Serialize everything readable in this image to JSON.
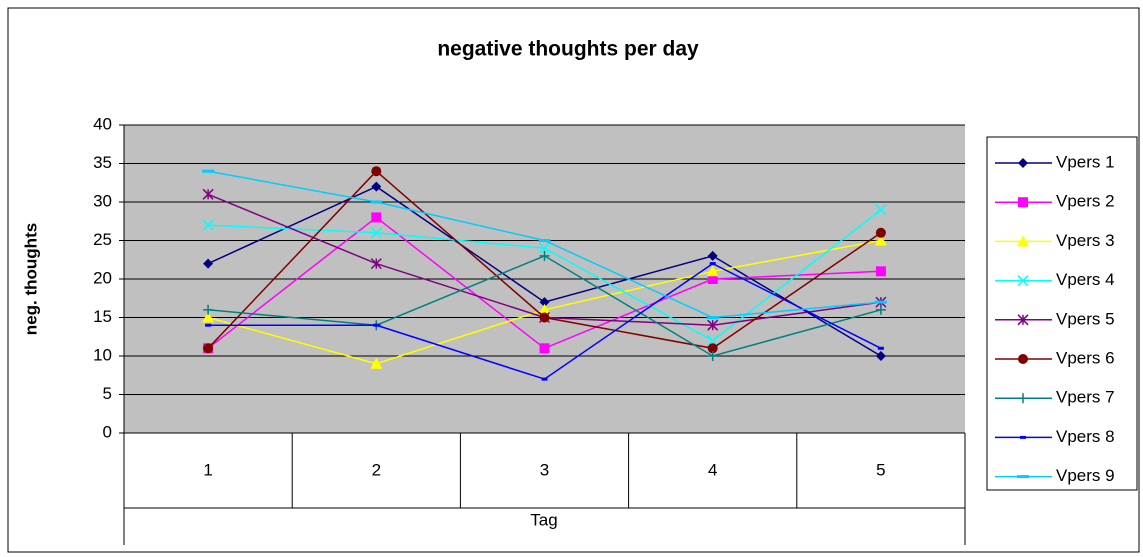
{
  "chart_data": {
    "type": "line",
    "title": "negative thoughts per day",
    "x_label": "Tag",
    "y_label": "neg. thoughts",
    "categories": [
      "1",
      "2",
      "3",
      "4",
      "5"
    ],
    "ylim": [
      0,
      40
    ],
    "yticks": [
      0,
      5,
      10,
      15,
      20,
      25,
      30,
      35,
      40
    ],
    "grid": true,
    "legend": "right",
    "series": [
      {
        "name": "Vpers 1",
        "color": "#000080",
        "marker": "diamond",
        "values": [
          22,
          32,
          17,
          23,
          10
        ]
      },
      {
        "name": "Vpers 2",
        "color": "#ff00ff",
        "marker": "square",
        "values": [
          11,
          28,
          11,
          20,
          21
        ]
      },
      {
        "name": "Vpers 3",
        "color": "#ffff00",
        "marker": "triangle",
        "values": [
          15,
          9,
          16,
          21,
          25
        ]
      },
      {
        "name": "Vpers 4",
        "color": "#00ffff",
        "marker": "x",
        "values": [
          27,
          26,
          24,
          12,
          29
        ]
      },
      {
        "name": "Vpers 5",
        "color": "#800080",
        "marker": "star",
        "values": [
          31,
          22,
          15,
          14,
          17
        ]
      },
      {
        "name": "Vpers 6",
        "color": "#800000",
        "marker": "circle",
        "values": [
          11,
          34,
          15,
          11,
          26
        ]
      },
      {
        "name": "Vpers 7",
        "color": "#008080",
        "marker": "plus",
        "values": [
          16,
          14,
          23,
          10,
          16
        ]
      },
      {
        "name": "Vpers 8",
        "color": "#0000ff",
        "marker": "dash",
        "values": [
          14,
          14,
          7,
          22,
          11
        ]
      },
      {
        "name": "Vpers 9",
        "color": "#00ccff",
        "marker": "wide-dash",
        "values": [
          34,
          30,
          25,
          15,
          17
        ]
      }
    ]
  }
}
